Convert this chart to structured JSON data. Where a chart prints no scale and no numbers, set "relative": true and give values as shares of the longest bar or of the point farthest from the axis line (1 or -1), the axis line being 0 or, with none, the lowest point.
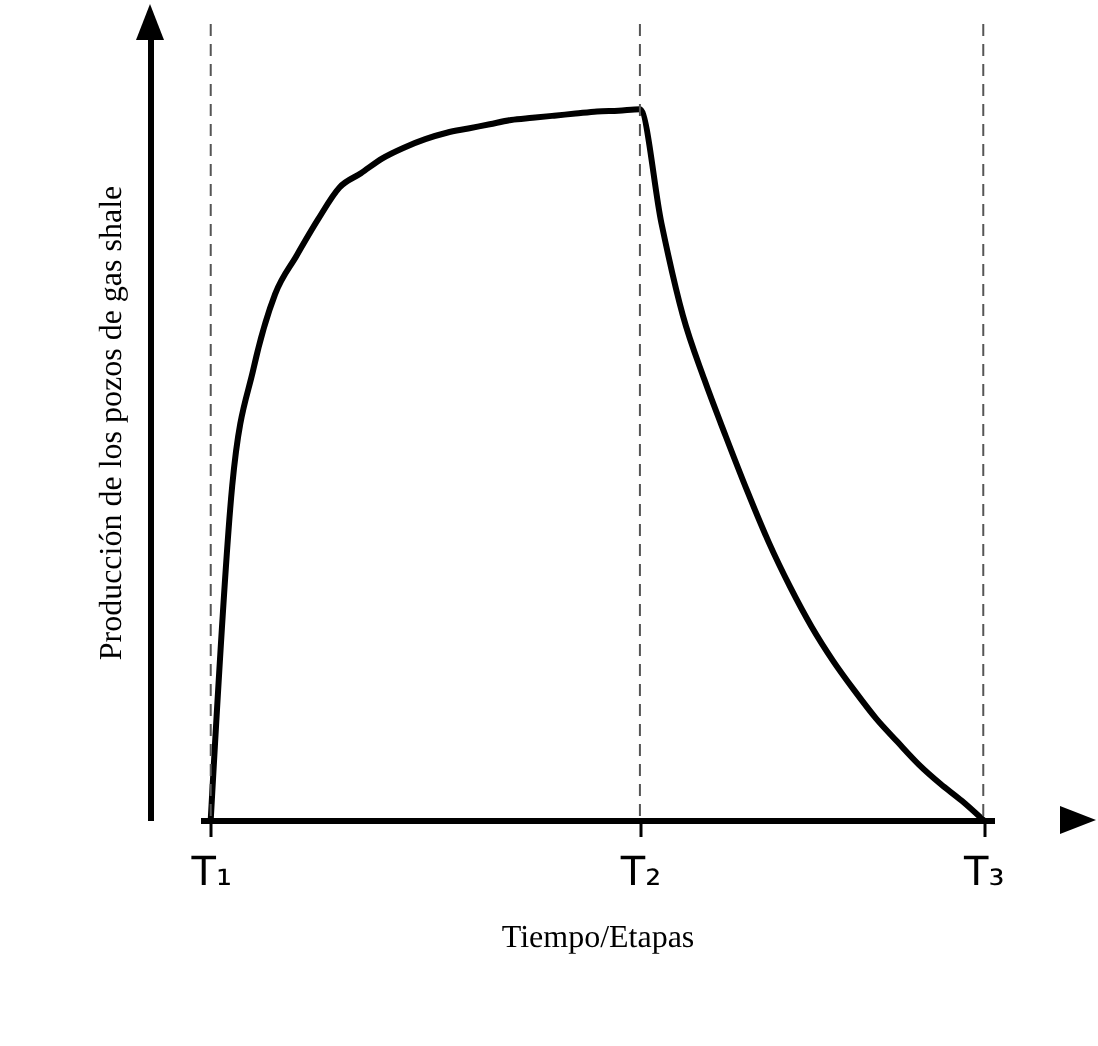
{
  "chart_data": {
    "type": "line",
    "xlabel": "Tiempo/Etapas",
    "ylabel": "Producción de los pozos de gas shale",
    "relative": true,
    "categories": [
      "T₁",
      null,
      null,
      null,
      null,
      null,
      null,
      null,
      null,
      null,
      null,
      null,
      null,
      null,
      null,
      null,
      null,
      null,
      null,
      null,
      "T₂",
      null,
      null,
      null,
      null,
      null,
      null,
      null,
      null,
      null,
      null,
      null,
      null,
      null,
      null,
      null,
      "T₃"
    ],
    "series": [
      {
        "color": "#000000",
        "values": [
          0,
          0.47,
          0.636,
          0.74,
          0.794,
          0.845,
          0.89,
          0.91,
          0.931,
          0.946,
          0.958,
          0.967,
          0.973,
          0.979,
          0.985,
          0.988,
          0.991,
          0.994,
          0.997,
          0.998,
          1,
          0.84,
          0.71,
          0.62,
          0.54,
          0.463,
          0.391,
          0.328,
          0.272,
          0.224,
          0.182,
          0.143,
          0.11,
          0.078,
          0.051,
          0.027,
          0
        ]
      }
    ],
    "ref_lines": [
      {
        "axis": "x",
        "value": "T₁",
        "line_style": "dashed",
        "color": "#555555"
      },
      {
        "axis": "x",
        "value": "T₂",
        "line_style": "dashed",
        "color": "#555555"
      },
      {
        "axis": "x",
        "value": "T₃",
        "line_style": "dashed",
        "color": "#555555"
      }
    ]
  }
}
